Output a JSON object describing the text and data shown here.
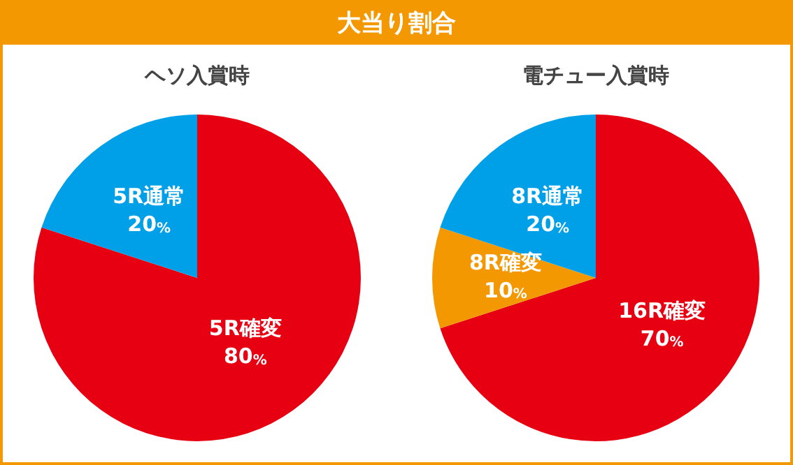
{
  "chart_data": [
    {
      "type": "other",
      "title": "大当り割合"
    },
    {
      "type": "pie",
      "title": "ヘソ入賞時",
      "categories": [
        "5R確変",
        "5R通常"
      ],
      "values": [
        80,
        20
      ],
      "colors": [
        "#e60012",
        "#00a0e9"
      ],
      "value_labels": [
        "80%",
        "20%"
      ],
      "legend": false
    },
    {
      "type": "pie",
      "title": "電チュー入賞時",
      "categories": [
        "16R確変",
        "8R確変",
        "8R通常"
      ],
      "values": [
        70,
        10,
        20
      ],
      "colors": [
        "#e60012",
        "#f39800",
        "#00a0e9"
      ],
      "value_labels": [
        "70%",
        "10%",
        "20%"
      ],
      "legend": false
    }
  ]
}
